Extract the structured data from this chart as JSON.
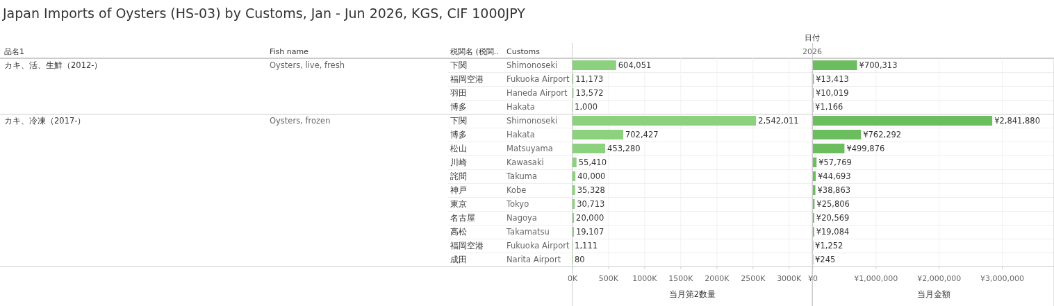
{
  "chart_data": [
    {
      "type": "other",
      "title": "Japan Imports of Oysters (HS-03) by Customs, Jan - Jun 2026, KGS, CIF 1000JPY",
      "categories": [
        "品名1",
        "Fish name",
        "税関名 (税関..",
        "Customs"
      ],
      "annotations": [
        "日付",
        "2026"
      ],
      "cells": [
        [
          "カキ、活、生鮮（2012-）",
          "Oysters, live, fresh",
          "下関",
          "Shimonoseki"
        ],
        [
          null,
          null,
          "福岡空港",
          "Fukuoka Airport"
        ],
        [
          null,
          null,
          "羽田",
          "Haneda Airport"
        ],
        [
          null,
          null,
          "博多",
          "Hakata"
        ],
        [
          "カキ、冷凍（2017-）",
          "Oysters, frozen",
          "下関",
          "Shimonoseki"
        ],
        [
          null,
          null,
          "博多",
          "Hakata"
        ],
        [
          null,
          null,
          "松山",
          "Matsuyama"
        ],
        [
          null,
          null,
          "川崎",
          "Kawasaki"
        ],
        [
          null,
          null,
          "詫間",
          "Takuma"
        ],
        [
          null,
          null,
          "神戸",
          "Kobe"
        ],
        [
          null,
          null,
          "東京",
          "Tokyo"
        ],
        [
          null,
          null,
          "名古屋",
          "Nagoya"
        ],
        [
          null,
          null,
          "高松",
          "Takamatsu"
        ],
        [
          null,
          null,
          "福岡空港",
          "Fukuoka Airport"
        ],
        [
          null,
          null,
          "成田",
          "Narita Airport"
        ]
      ]
    },
    {
      "type": "bar",
      "orientation": "horizontal",
      "tick_labels": "x",
      "grid": "x",
      "color": "#8cd17d",
      "xlabel": "当月第2数量",
      "categories": [
        null,
        null,
        null,
        null,
        null,
        null,
        null,
        null,
        null,
        null,
        null,
        null,
        null,
        null,
        null
      ],
      "values": [
        604051,
        11173,
        13572,
        1000,
        2542011,
        702427,
        453280,
        55410,
        40000,
        35328,
        30713,
        20000,
        19107,
        1111,
        80
      ],
      "value_labels": [
        "604,051",
        "11,173",
        "13,572",
        "1,000",
        "2,542,011",
        "702,427",
        "453,280",
        "55,410",
        "40,000",
        "35,328",
        "30,713",
        "20,000",
        "19,107",
        "1,111",
        "80"
      ],
      "xlim": [
        0,
        3320000
      ],
      "xticks": [
        {
          "value": 0,
          "label": "0K"
        },
        {
          "value": 500000,
          "label": "500K"
        },
        {
          "value": 1000000,
          "label": "1000K"
        },
        {
          "value": 1500000,
          "label": "1500K"
        },
        {
          "value": 2000000,
          "label": "2000K"
        },
        {
          "value": 2500000,
          "label": "2500K"
        },
        {
          "value": 3000000,
          "label": "3000K"
        }
      ]
    },
    {
      "type": "bar",
      "orientation": "horizontal",
      "tick_labels": "x",
      "grid": "x",
      "color": "#6cbd5e",
      "xlabel": "当月金額",
      "categories": [
        null,
        null,
        null,
        null,
        null,
        null,
        null,
        null,
        null,
        null,
        null,
        null,
        null,
        null,
        null
      ],
      "values": [
        700313,
        13413,
        10019,
        1166,
        2841880,
        762292,
        499876,
        57769,
        44693,
        38863,
        25806,
        20569,
        19084,
        1252,
        245
      ],
      "value_labels": [
        "¥700,313",
        "¥13,413",
        "¥10,019",
        "¥1,166",
        "¥2,841,880",
        "¥762,292",
        "¥499,876",
        "¥57,769",
        "¥44,693",
        "¥38,863",
        "¥25,806",
        "¥20,569",
        "¥19,084",
        "¥1,252",
        "¥245"
      ],
      "xlim": [
        0,
        3820000
      ],
      "xticks": [
        {
          "value": 0,
          "label": "¥0"
        },
        {
          "value": 1000000,
          "label": "¥1,000,000"
        },
        {
          "value": 2000000,
          "label": "¥2,000,000"
        },
        {
          "value": 3000000,
          "label": "¥3,000,000"
        }
      ]
    }
  ]
}
